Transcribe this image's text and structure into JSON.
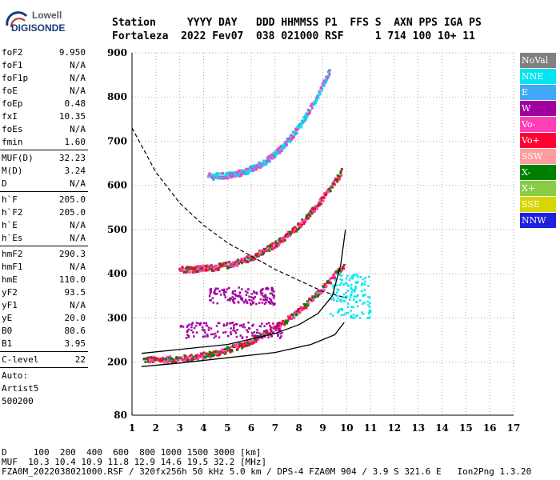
{
  "logo": {
    "line1": "Lowell",
    "line2": "DIGISONDE"
  },
  "header": {
    "row1": "Station     YYYY DAY   DDD HHMMSS P1  FFS S  AXN PPS IGA PS",
    "row2": "Fortaleza  2022 Fev07  038 021000 RSF     1 714 100 10+ 11"
  },
  "params": {
    "group1": [
      {
        "k": "foF2",
        "v": "9.950"
      },
      {
        "k": "foF1",
        "v": "N/A"
      },
      {
        "k": "foF1p",
        "v": "N/A"
      },
      {
        "k": "foE",
        "v": "N/A"
      },
      {
        "k": "foEp",
        "v": "0.48"
      },
      {
        "k": "fxI",
        "v": "10.35"
      },
      {
        "k": "foEs",
        "v": "N/A"
      },
      {
        "k": "fmin",
        "v": "1.60"
      }
    ],
    "group2": [
      {
        "k": "MUF(D)",
        "v": "32.23"
      },
      {
        "k": "M(D)",
        "v": "3.24"
      },
      {
        "k": "D",
        "v": "N/A"
      }
    ],
    "group3": [
      {
        "k": "h`F",
        "v": "205.0"
      },
      {
        "k": "h`F2",
        "v": "205.0"
      },
      {
        "k": "h`E",
        "v": "N/A"
      },
      {
        "k": "h`Es",
        "v": "N/A"
      }
    ],
    "group4": [
      {
        "k": "hmF2",
        "v": "290.3"
      },
      {
        "k": "hmF1",
        "v": "N/A"
      },
      {
        "k": "hmE",
        "v": "110.0"
      },
      {
        "k": "yF2",
        "v": "93.5"
      },
      {
        "k": "yF1",
        "v": "N/A"
      },
      {
        "k": "yE",
        "v": "20.0"
      },
      {
        "k": "B0",
        "v": "80.6"
      },
      {
        "k": "B1",
        "v": "3.95"
      }
    ],
    "group5": [
      {
        "k": "C-level",
        "v": "22"
      }
    ],
    "auto": [
      "Auto:",
      "Artist5",
      "500200"
    ]
  },
  "legend": [
    {
      "label": "NoVal",
      "color": "#808080"
    },
    {
      "label": "NNE",
      "color": "#00e5f0"
    },
    {
      "label": "E",
      "color": "#3fa9f5"
    },
    {
      "label": "W",
      "color": "#a000a0"
    },
    {
      "label": "Vo-",
      "color": "#ff3fb8"
    },
    {
      "label": "Vo+",
      "color": "#ff0033"
    },
    {
      "label": "SSW",
      "color": "#ff9c9c"
    },
    {
      "label": "X-",
      "color": "#008000"
    },
    {
      "label": "X+",
      "color": "#88cc44"
    },
    {
      "label": "SSE",
      "color": "#d6d600"
    },
    {
      "label": "NNW",
      "color": "#2020e0"
    }
  ],
  "footer": {
    "line1": "D     100  200  400  600  800 1000 1500 3000 [km]",
    "line2": "MUF  10.3 10.4 10.9 11.8 12.9 14.6 19.5 32.2 [MHz]",
    "line3": "FZA0M_2022038021000.RSF / 320fx256h 50 kHz 5.0 km / DPS-4 FZA0M 904 / 3.9 S 321.6 E   Ion2Png 1.3.20"
  },
  "chart_data": {
    "type": "scatter",
    "xlim": [
      1,
      17
    ],
    "ylim": [
      80,
      900
    ],
    "xticks": [
      1,
      2,
      3,
      4,
      5,
      6,
      7,
      8,
      9,
      10,
      11,
      12,
      13,
      14,
      15,
      16,
      17
    ],
    "yticks": [
      80,
      200,
      300,
      400,
      500,
      600,
      700,
      800,
      900
    ],
    "grid": "dotted",
    "trace_bands": [
      {
        "name": "F2 O-trace",
        "f0": 1.5,
        "f1": 9.9,
        "hs": 205,
        "he": 420,
        "colors": [
          "#ff0033",
          "#ff3fb8",
          "#008000"
        ]
      },
      {
        "name": "F2 echo 2",
        "f0": 3.0,
        "f1": 9.8,
        "hs": 410,
        "he": 630,
        "colors": [
          "#ff0033",
          "#ff3fb8",
          "#008000"
        ]
      },
      {
        "name": "F2 echo 3",
        "f0": 4.2,
        "f1": 9.3,
        "hs": 620,
        "he": 860,
        "colors": [
          "#3fa9f5",
          "#00e5f0",
          "#ff3fb8"
        ]
      }
    ],
    "spread_blocks": [
      {
        "f0": 3.0,
        "f1": 7.3,
        "h0": 255,
        "h1": 290,
        "color": "#a000a0"
      },
      {
        "f0": 4.2,
        "f1": 7.0,
        "h0": 330,
        "h1": 370,
        "color": "#a000a0"
      },
      {
        "f0": 9.3,
        "f1": 11.0,
        "h0": 300,
        "h1": 400,
        "color": "#00e5f0"
      }
    ],
    "profile_curve": [
      [
        1.4,
        190
      ],
      [
        3,
        198
      ],
      [
        5,
        210
      ],
      [
        7,
        222
      ],
      [
        8.5,
        240
      ],
      [
        9.5,
        262
      ],
      [
        9.9,
        290
      ]
    ],
    "model_curve": [
      [
        1.4,
        220
      ],
      [
        5,
        240
      ],
      [
        7,
        265
      ],
      [
        8,
        285
      ],
      [
        8.8,
        310
      ],
      [
        9.4,
        350
      ],
      [
        9.75,
        420
      ],
      [
        9.95,
        500
      ]
    ],
    "muf_curve": [
      [
        1.0,
        730
      ],
      [
        1.5,
        680
      ],
      [
        2.0,
        630
      ],
      [
        3.0,
        560
      ],
      [
        4.0,
        510
      ],
      [
        5.0,
        470
      ],
      [
        6.0,
        440
      ],
      [
        7.0,
        410
      ],
      [
        8.0,
        385
      ],
      [
        9.0,
        360
      ],
      [
        10.0,
        345
      ]
    ]
  }
}
